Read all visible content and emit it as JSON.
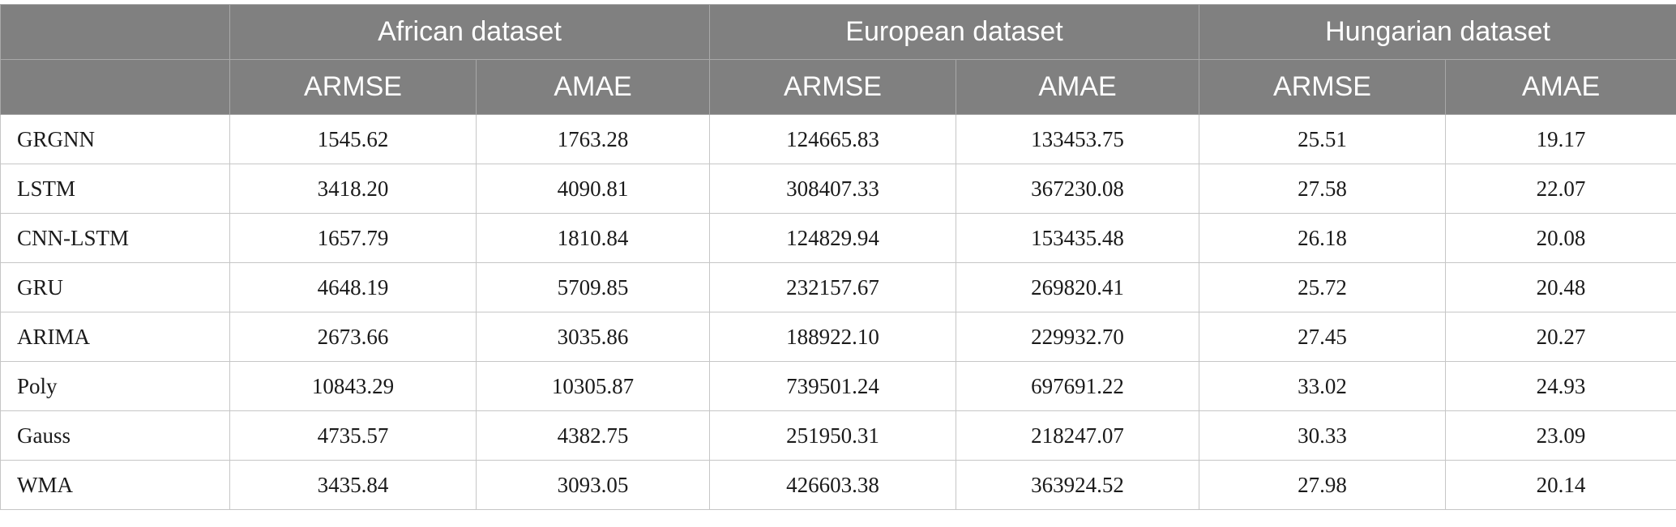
{
  "table": {
    "groups": [
      {
        "label": ""
      },
      {
        "label": "African dataset"
      },
      {
        "label": "European dataset"
      },
      {
        "label": "Hungarian dataset"
      }
    ],
    "metrics": [
      "ARMSE",
      "AMAE",
      "ARMSE",
      "AMAE",
      "ARMSE",
      "AMAE"
    ],
    "rows": [
      {
        "model": "GRGNN",
        "values": [
          "1545.62",
          "1763.28",
          "124665.83",
          "133453.75",
          "25.51",
          "19.17"
        ]
      },
      {
        "model": "LSTM",
        "values": [
          "3418.20",
          "4090.81",
          "308407.33",
          "367230.08",
          "27.58",
          "22.07"
        ]
      },
      {
        "model": "CNN-LSTM",
        "values": [
          "1657.79",
          "1810.84",
          "124829.94",
          "153435.48",
          "26.18",
          "20.08"
        ]
      },
      {
        "model": "GRU",
        "values": [
          "4648.19",
          "5709.85",
          "232157.67",
          "269820.41",
          "25.72",
          "20.48"
        ]
      },
      {
        "model": "ARIMA",
        "values": [
          "2673.66",
          "3035.86",
          "188922.10",
          "229932.70",
          "27.45",
          "20.27"
        ]
      },
      {
        "model": "Poly",
        "values": [
          "10843.29",
          "10305.87",
          "739501.24",
          "697691.22",
          "33.02",
          "24.93"
        ]
      },
      {
        "model": "Gauss",
        "values": [
          "4735.57",
          "4382.75",
          "251950.31",
          "218247.07",
          "30.33",
          "23.09"
        ]
      },
      {
        "model": "WMA",
        "values": [
          "3435.84",
          "3093.05",
          "426603.38",
          "363924.52",
          "27.98",
          "20.14"
        ]
      }
    ]
  }
}
